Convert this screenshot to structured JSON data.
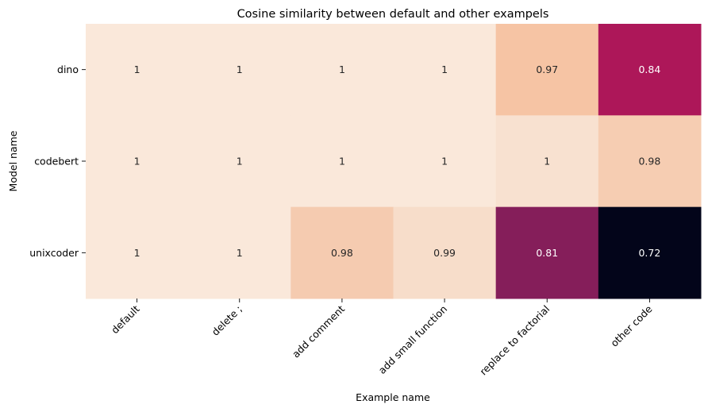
{
  "chart_data": {
    "type": "heatmap",
    "title": "Cosine similarity between default and other exampels",
    "xlabel": "Example name",
    "ylabel": "Model name",
    "x_categories": [
      "default",
      "delete ;",
      "add comment",
      "add small function",
      "replace to factorial",
      "other code"
    ],
    "y_categories": [
      "dino",
      "codebert",
      "unixcoder"
    ],
    "values": [
      [
        1.0,
        1.0,
        1.0,
        1.0,
        0.97,
        0.84
      ],
      [
        1.0,
        1.0,
        1.0,
        1.0,
        1.0,
        0.98
      ],
      [
        1.0,
        1.0,
        0.98,
        0.99,
        0.81,
        0.72
      ]
    ],
    "cell_labels": [
      [
        "1",
        "1",
        "1",
        "1",
        "0.97",
        "0.84"
      ],
      [
        "1",
        "1",
        "1",
        "1",
        "1",
        "0.98"
      ],
      [
        "1",
        "1",
        "0.98",
        "0.99",
        "0.81",
        "0.72"
      ]
    ],
    "cell_colors": [
      [
        "#fae8da",
        "#fae8da",
        "#fae8da",
        "#fae8da",
        "#f6c4a4",
        "#ad1759"
      ],
      [
        "#fae8da",
        "#fae8da",
        "#fae8da",
        "#fae8da",
        "#f8e1d0",
        "#f6cdb2"
      ],
      [
        "#fae8da",
        "#fae8da",
        "#f5cbb0",
        "#f7ddca",
        "#851e5a",
        "#03051a"
      ]
    ],
    "colorbar": false,
    "grid": false
  }
}
